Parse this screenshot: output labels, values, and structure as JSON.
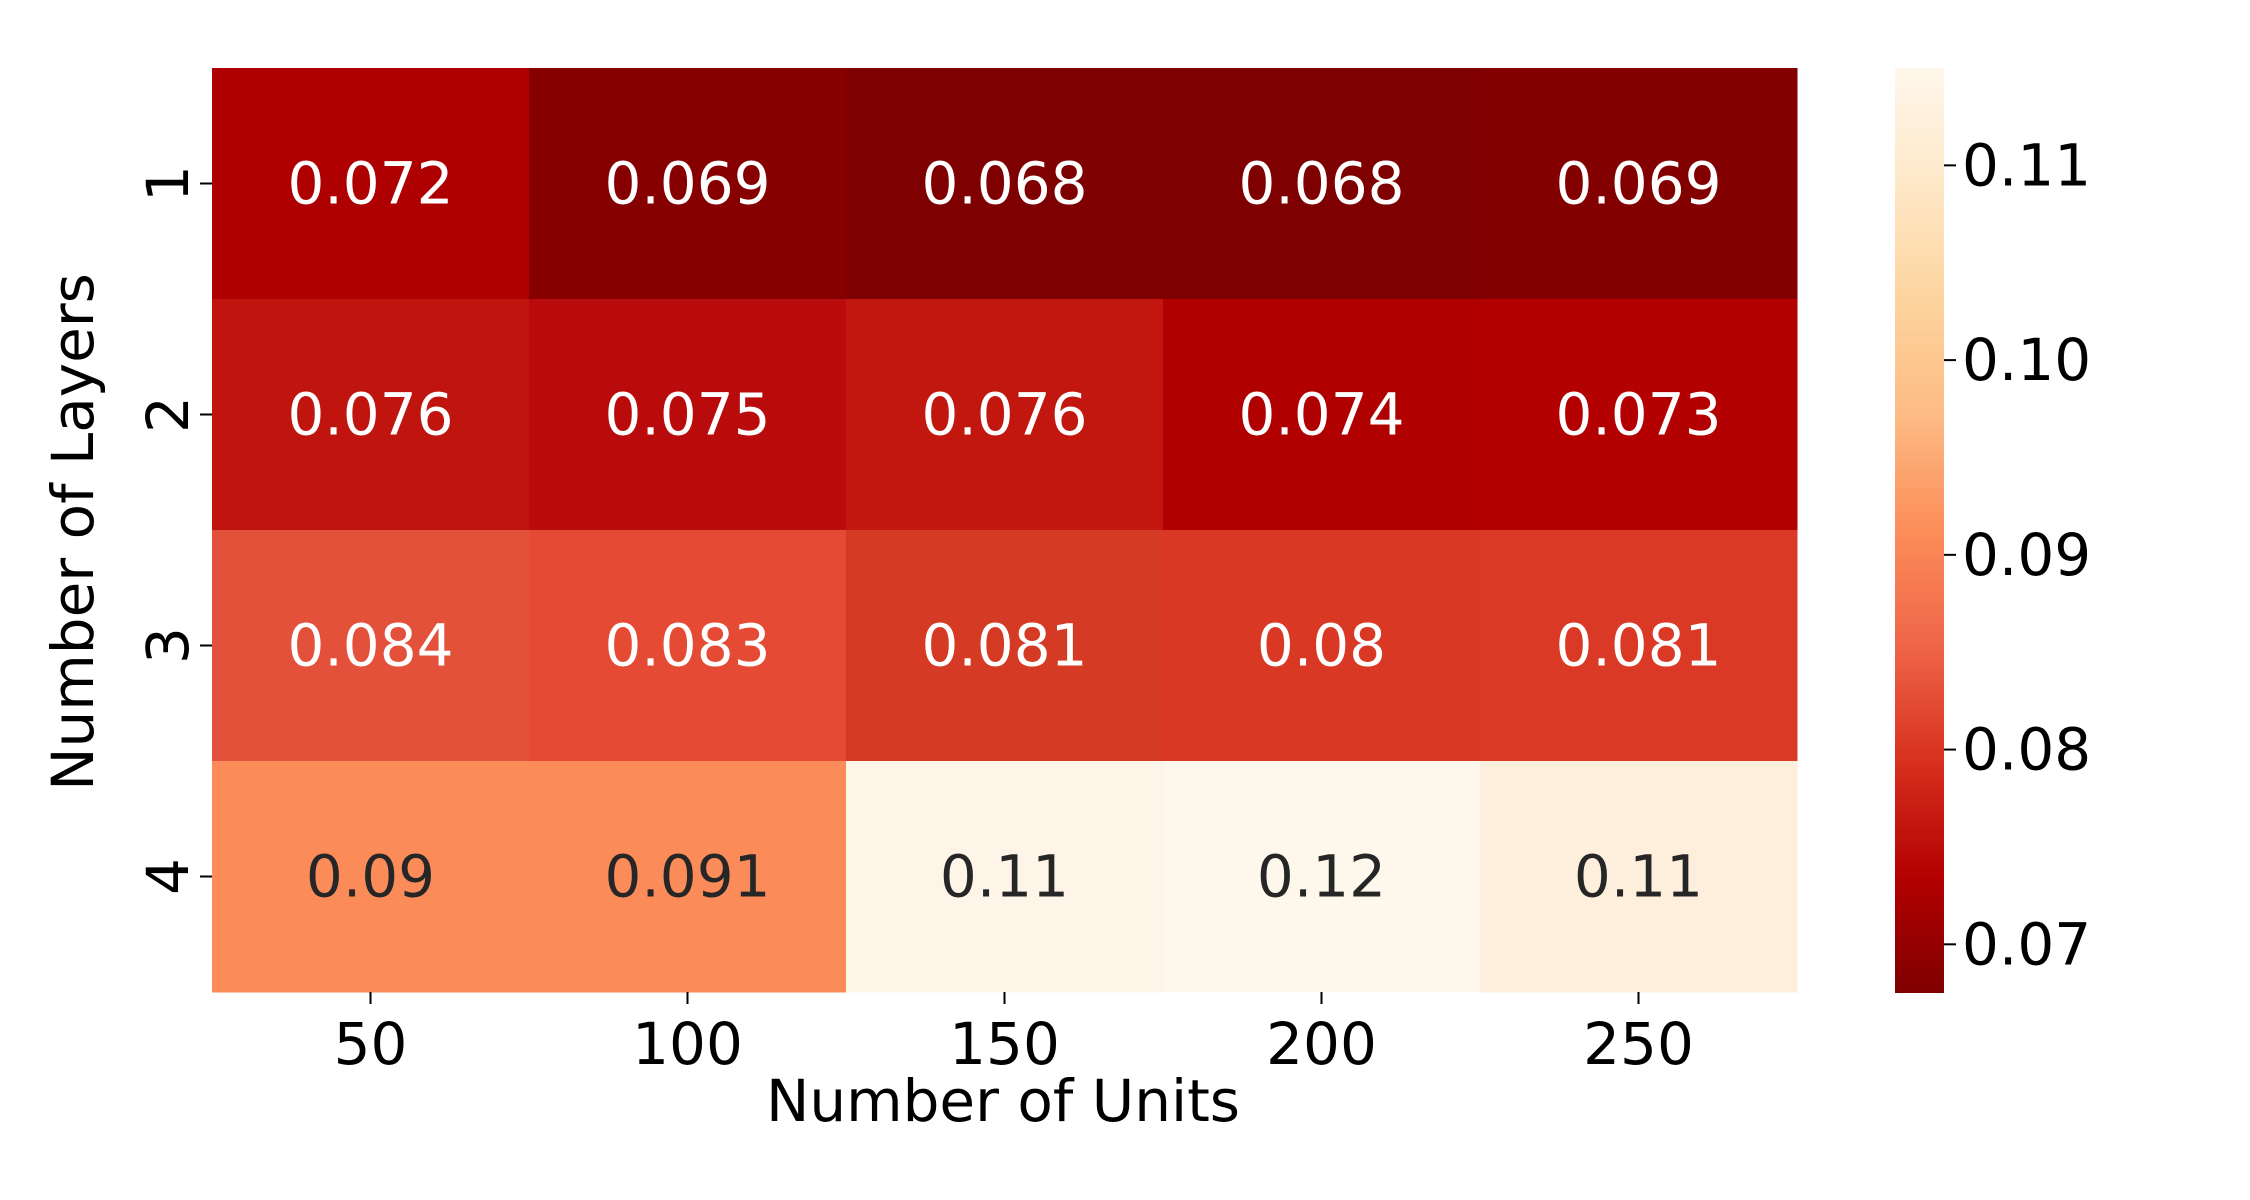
{
  "chart_data": {
    "type": "heatmap",
    "title": "",
    "xlabel": "Number of Units",
    "ylabel": "Number of Layers",
    "x_categories": [
      "50",
      "100",
      "150",
      "200",
      "250"
    ],
    "y_categories": [
      "1",
      "2",
      "3",
      "4"
    ],
    "values": [
      [
        0.072,
        0.069,
        0.068,
        0.068,
        0.069
      ],
      [
        0.076,
        0.075,
        0.076,
        0.074,
        0.073
      ],
      [
        0.084,
        0.083,
        0.081,
        0.08,
        0.081
      ],
      [
        0.09,
        0.091,
        0.11,
        0.12,
        0.11
      ]
    ],
    "cell_labels": [
      [
        "0.072",
        "0.069",
        "0.068",
        "0.068",
        "0.069"
      ],
      [
        "0.076",
        "0.075",
        "0.076",
        "0.074",
        "0.073"
      ],
      [
        "0.084",
        "0.083",
        "0.081",
        "0.08",
        "0.081"
      ],
      [
        "0.09",
        "0.091",
        "0.11",
        "0.12",
        "0.11"
      ]
    ],
    "colormap": "OrRd (reversed)",
    "colorbar": {
      "range": [
        0.0675,
        0.115
      ],
      "ticks": [
        0.07,
        0.08,
        0.09,
        0.1,
        0.11
      ],
      "tick_labels": [
        "0.07",
        "0.08",
        "0.09",
        "0.10",
        "0.11"
      ],
      "colors": [
        "#7f0000",
        "#b30000",
        "#d7301f",
        "#ef6548",
        "#fc8d59",
        "#fdbb84",
        "#fdd49e",
        "#fee8c8",
        "#fff7ec"
      ]
    },
    "cell_colors": [
      [
        "#ae0000",
        "#870000",
        "#7f0000",
        "#7f0000",
        "#830000"
      ],
      [
        "#c0150f",
        "#b90b0b",
        "#c2170f",
        "#b00000",
        "#b30000"
      ],
      [
        "#e4513a",
        "#e44a34",
        "#d53b24",
        "#d93825",
        "#da3925"
      ],
      [
        "#fb8c5a",
        "#fb8c5a",
        "#fef5e8",
        "#fef8ec",
        "#feefdc"
      ]
    ],
    "grid": false,
    "legend": "colorbar-right"
  }
}
